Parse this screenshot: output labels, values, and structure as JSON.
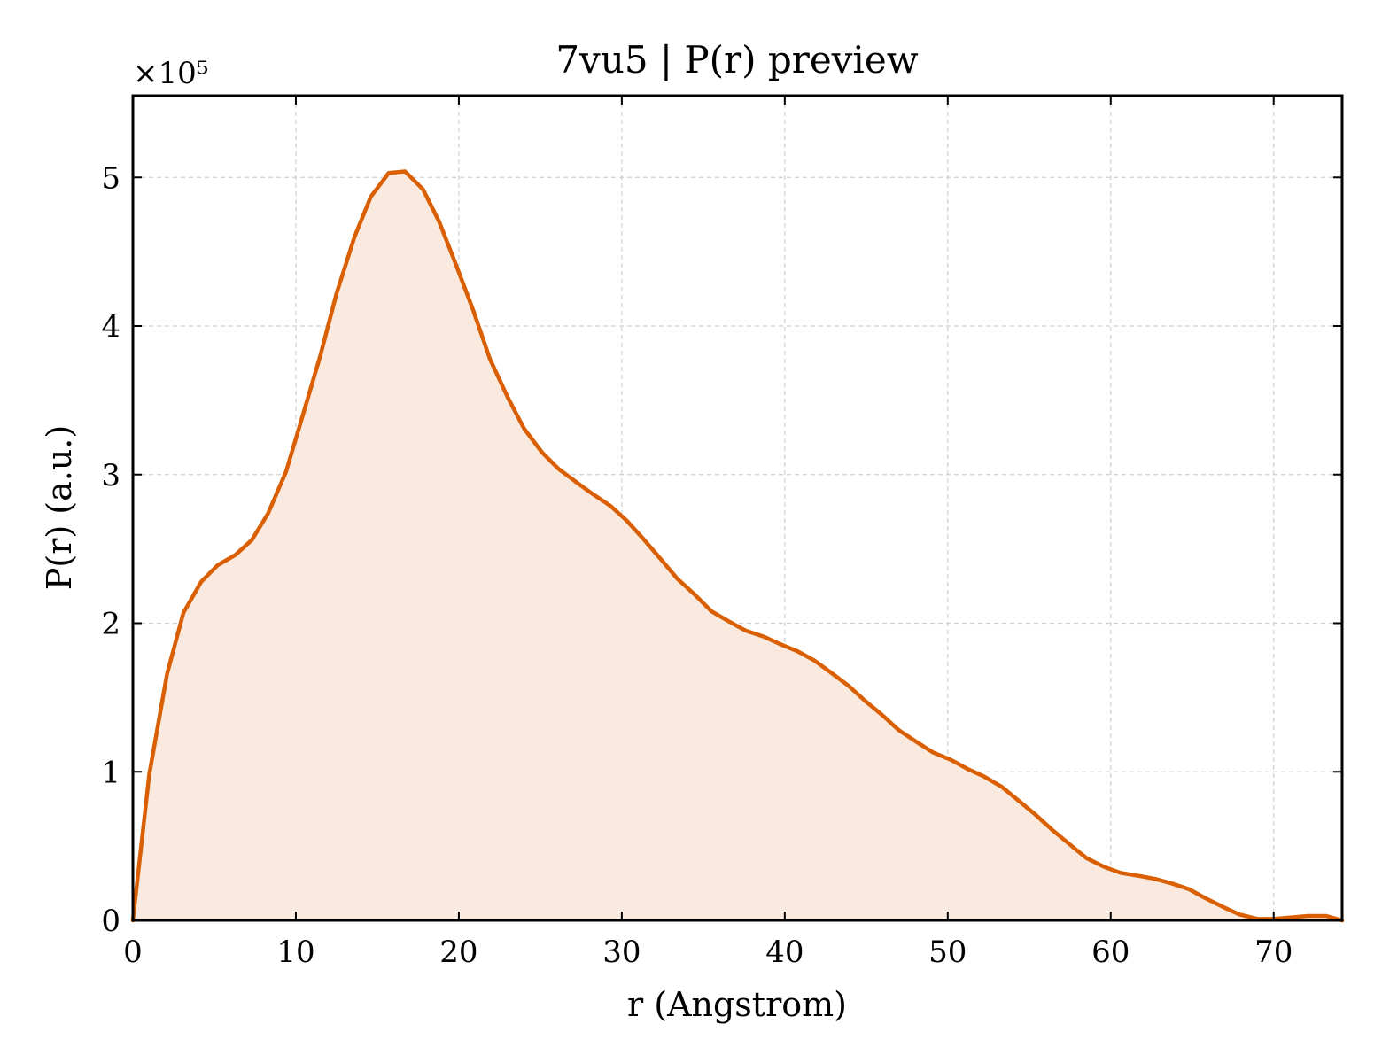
{
  "chart_data": {
    "type": "area",
    "title": "7vu5 | P(r) preview",
    "xlabel": "r (Angstrom)",
    "ylabel": "P(r) (a.u.)",
    "y_scale_label": "×10⁵",
    "xlim": [
      0,
      74.2
    ],
    "ylim": [
      0,
      5.55
    ],
    "xticks": [
      0,
      10,
      20,
      30,
      40,
      50,
      60,
      70
    ],
    "yticks": [
      0,
      1,
      2,
      3,
      4,
      5
    ],
    "xtick_labels": [
      "0",
      "10",
      "20",
      "30",
      "40",
      "50",
      "60",
      "70"
    ],
    "ytick_labels": [
      "0",
      "1",
      "2",
      "3",
      "4",
      "5"
    ],
    "grid": true,
    "line_color": "#d95f02",
    "fill_color": "#f9e9df",
    "series": [
      {
        "x": [
          0,
          1.0,
          2.1,
          3.1,
          4.2,
          5.2,
          6.3,
          7.3,
          8.3,
          9.4,
          10.4,
          11.5,
          12.5,
          13.6,
          14.6,
          15.7,
          16.7,
          17.8,
          18.8,
          19.8,
          20.9,
          21.9,
          23.0,
          24.0,
          25.1,
          26.1,
          27.2,
          28.2,
          29.3,
          30.3,
          31.3,
          32.4,
          33.4,
          34.5,
          35.5,
          36.6,
          37.6,
          38.7,
          39.7,
          40.8,
          41.8,
          42.8,
          43.9,
          44.9,
          46.0,
          47.0,
          48.1,
          49.1,
          50.2,
          51.2,
          52.2,
          53.3,
          54.3,
          55.4,
          56.4,
          57.5,
          58.5,
          59.6,
          60.6,
          61.7,
          62.7,
          63.7,
          64.8,
          65.8,
          66.9,
          67.9,
          69.0,
          70.0,
          71.1,
          72.1,
          73.2,
          74.2
        ],
        "y": [
          0,
          0.98,
          1.66,
          2.07,
          2.28,
          2.39,
          2.46,
          2.56,
          2.74,
          3.02,
          3.39,
          3.8,
          4.22,
          4.6,
          4.87,
          5.03,
          5.04,
          4.92,
          4.7,
          4.42,
          4.1,
          3.78,
          3.52,
          3.31,
          3.15,
          3.04,
          2.95,
          2.87,
          2.79,
          2.69,
          2.57,
          2.43,
          2.3,
          2.19,
          2.08,
          2.01,
          1.95,
          1.91,
          1.86,
          1.81,
          1.75,
          1.67,
          1.58,
          1.48,
          1.38,
          1.28,
          1.2,
          1.13,
          1.08,
          1.02,
          0.97,
          0.9,
          0.81,
          0.71,
          0.61,
          0.51,
          0.42,
          0.36,
          0.32,
          0.3,
          0.28,
          0.25,
          0.21,
          0.15,
          0.09,
          0.04,
          0.01,
          0.01,
          0.02,
          0.03,
          0.03,
          0.0
        ]
      }
    ]
  }
}
